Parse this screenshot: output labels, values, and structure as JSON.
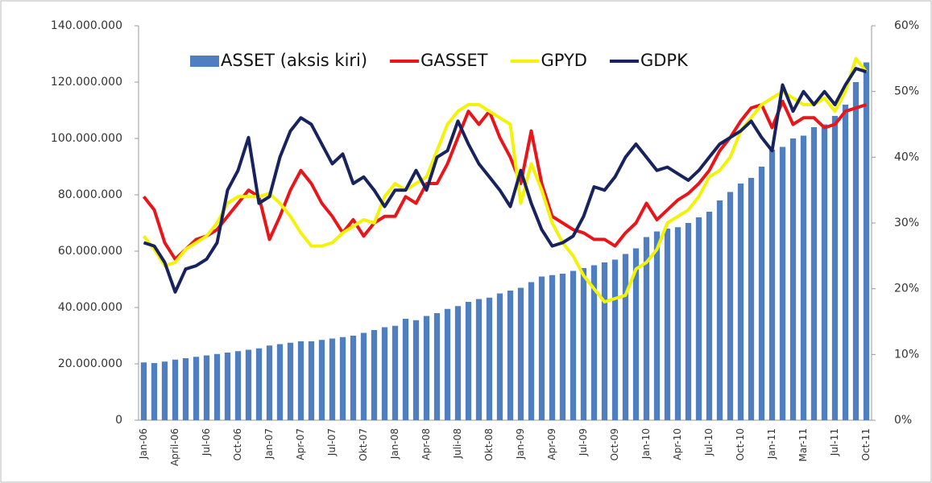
{
  "chart_data": {
    "type": "bar",
    "categories": [
      "Jan-06",
      null,
      null,
      "April-06",
      null,
      null,
      "Jul-06",
      null,
      null,
      "Oct-06",
      null,
      null,
      "Jan-07",
      null,
      null,
      "Apr-07",
      null,
      null,
      "Jul-07",
      null,
      null,
      "Okt-07",
      null,
      null,
      "Jan-08",
      null,
      null,
      "Apr-08",
      null,
      null,
      "Juli-08",
      null,
      null,
      "Okt-08",
      null,
      null,
      "Jan-09",
      null,
      null,
      "Apr-09",
      null,
      null,
      "Jul-09",
      null,
      null,
      "Oct-09",
      null,
      null,
      "Jan-10",
      null,
      null,
      "Apr-10",
      null,
      null,
      "Jul-10",
      null,
      null,
      "Oct-10",
      null,
      null,
      "Jan-11",
      null,
      null,
      "Mar-11",
      null,
      null,
      "Jul-11",
      null,
      null,
      "Oct-11"
    ],
    "series": [
      {
        "name": "ASSET (aksis kiri)",
        "type": "bar",
        "color": "#4f7fc0",
        "values": [
          20500000,
          20300000,
          20800000,
          21500000,
          22000000,
          22500000,
          23000000,
          23500000,
          24000000,
          24500000,
          25000000,
          25500000,
          26500000,
          27000000,
          27500000,
          28000000,
          28000000,
          28500000,
          29000000,
          29500000,
          30000000,
          31000000,
          32000000,
          33000000,
          33500000,
          36000000,
          35500000,
          37000000,
          38000000,
          39500000,
          40500000,
          42000000,
          43000000,
          43500000,
          45000000,
          46000000,
          47000000,
          49000000,
          51000000,
          51500000,
          52000000,
          53000000,
          54000000,
          55000000,
          56000000,
          57000000,
          59000000,
          61000000,
          65000000,
          67000000,
          68000000,
          68500000,
          70000000,
          72000000,
          74000000,
          78000000,
          81000000,
          84000000,
          86000000,
          90000000,
          96000000,
          97000000,
          100000000,
          101000000,
          104000000,
          105000000,
          108000000,
          112000000,
          120000000,
          127000000
        ]
      },
      {
        "name": "GASSET",
        "type": "line",
        "axis": "y2",
        "color": "#e8161b",
        "values": [
          34,
          32,
          27,
          24.5,
          26,
          27.5,
          28,
          29,
          31,
          33,
          35,
          34,
          27.5,
          31,
          35,
          38,
          36,
          33,
          31,
          28.5,
          30.5,
          28,
          30,
          31,
          31,
          34,
          33,
          36,
          36,
          39,
          43,
          47,
          45,
          47,
          43,
          40,
          36,
          44,
          36,
          31,
          30,
          29,
          28.5,
          27.5,
          27.5,
          26.5,
          28.5,
          30,
          33,
          30.5,
          32,
          33.5,
          34.5,
          36,
          38,
          41,
          43,
          45.5,
          47.5,
          48,
          44.5,
          48.5,
          45,
          46,
          46,
          44.5,
          45,
          47,
          47.5,
          48
        ]
      },
      {
        "name": "GPYD",
        "type": "line",
        "axis": "y2",
        "color": "#f2f20a",
        "values": [
          28,
          26,
          23.5,
          24,
          26,
          27,
          28,
          30,
          33,
          34,
          34,
          34,
          34.5,
          33,
          31,
          28.5,
          26.5,
          26.5,
          27,
          28.5,
          29.5,
          30.5,
          30,
          34,
          36,
          35,
          36,
          37,
          41,
          45,
          47,
          48,
          48,
          47,
          46,
          45,
          33,
          39,
          35,
          30,
          27,
          25,
          22,
          20,
          18,
          18.5,
          19,
          23,
          24,
          26,
          30,
          31,
          32,
          34,
          37,
          38,
          40,
          44,
          46,
          48,
          49,
          50,
          49,
          48,
          48,
          49,
          47,
          50,
          55,
          53
        ]
      },
      {
        "name": "GDPK",
        "type": "line",
        "axis": "y2",
        "color": "#18235e",
        "values": [
          27,
          26.5,
          24,
          19.5,
          23,
          23.5,
          24.5,
          27,
          35,
          38,
          43,
          33,
          34,
          40,
          44,
          46,
          45,
          42,
          39,
          40.5,
          36,
          37,
          35,
          32.5,
          35,
          35,
          38,
          35,
          40,
          41,
          45.5,
          42,
          39,
          37,
          35,
          32.5,
          38,
          33,
          29,
          26.5,
          27,
          28,
          31,
          35.5,
          35,
          37,
          40,
          42,
          40,
          38,
          38.5,
          37.5,
          36.5,
          38,
          40,
          42,
          43,
          44,
          45.5,
          43,
          41,
          51,
          47,
          50,
          48,
          50,
          48,
          51,
          53.5,
          53
        ]
      }
    ],
    "ylim": [
      0,
      140000000
    ],
    "yticks": [
      0,
      {
        "value": 20000000,
        "label": "20.000.000"
      },
      {
        "value": 40000000,
        "label": "40.000.000"
      },
      {
        "value": 60000000,
        "label": "60.000.000"
      },
      {
        "value": 80000000,
        "label": "80.000.000"
      },
      {
        "value": 100000000,
        "label": "100.000.000"
      },
      {
        "value": 120000000,
        "label": "120.000.000"
      },
      {
        "value": 140000000,
        "label": "140.000.000"
      }
    ],
    "y2lim": [
      0,
      60
    ],
    "y2ticks": [
      {
        "value": 0,
        "label": "0%"
      },
      {
        "value": 10,
        "label": "10%"
      },
      {
        "value": 20,
        "label": "20%"
      },
      {
        "value": 30,
        "label": "30%"
      },
      {
        "value": 40,
        "label": "40%"
      },
      {
        "value": 50,
        "label": "50%"
      },
      {
        "value": 60,
        "label": "60%"
      }
    ],
    "legend": "top"
  }
}
